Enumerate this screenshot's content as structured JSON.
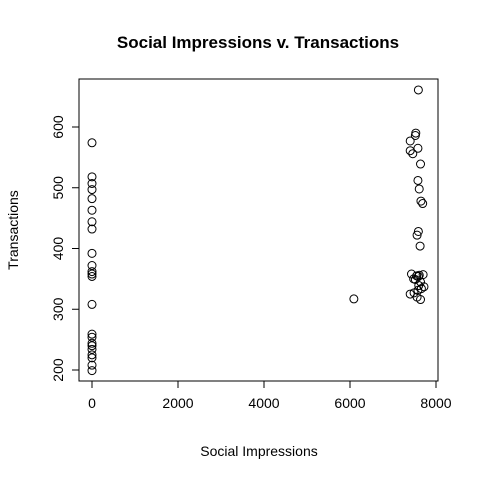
{
  "chart_data": {
    "type": "scatter",
    "title": "Social Impressions v. Transactions",
    "xlabel": "Social Impressions",
    "ylabel": "Transactions",
    "xlim": [
      -300,
      8000
    ],
    "ylim": [
      190,
      680
    ],
    "xticks": [
      0,
      2000,
      4000,
      6000,
      8000
    ],
    "yticks": [
      200,
      300,
      400,
      500,
      600
    ],
    "xtick_labels": [
      "0",
      "2000",
      "4000",
      "6000",
      "8000"
    ],
    "ytick_labels": [
      "200",
      "300",
      "400",
      "500",
      "600"
    ],
    "grid": false,
    "series": [
      {
        "points": [
          [
            0,
            574
          ],
          [
            0,
            518
          ],
          [
            0,
            507
          ],
          [
            0,
            497
          ],
          [
            0,
            482
          ],
          [
            0,
            463
          ],
          [
            0,
            444
          ],
          [
            0,
            432
          ],
          [
            0,
            392
          ],
          [
            0,
            372
          ],
          [
            0,
            362
          ],
          [
            0,
            358
          ],
          [
            0,
            354
          ],
          [
            0,
            308
          ],
          [
            0,
            259
          ],
          [
            0,
            254
          ],
          [
            0,
            244
          ],
          [
            0,
            240
          ],
          [
            0,
            234
          ],
          [
            0,
            225
          ],
          [
            0,
            220
          ],
          [
            0,
            208
          ],
          [
            0,
            199
          ],
          [
            6090,
            317
          ],
          [
            7590,
            661
          ],
          [
            7530,
            590
          ],
          [
            7520,
            586
          ],
          [
            7400,
            577
          ],
          [
            7580,
            565
          ],
          [
            7400,
            561
          ],
          [
            7460,
            556
          ],
          [
            7640,
            539
          ],
          [
            7580,
            512
          ],
          [
            7610,
            498
          ],
          [
            7650,
            478
          ],
          [
            7690,
            474
          ],
          [
            7590,
            428
          ],
          [
            7560,
            422
          ],
          [
            7630,
            404
          ],
          [
            7430,
            358
          ],
          [
            7550,
            355
          ],
          [
            7590,
            354
          ],
          [
            7610,
            356
          ],
          [
            7700,
            357
          ],
          [
            7480,
            350
          ],
          [
            7520,
            349
          ],
          [
            7640,
            345
          ],
          [
            7600,
            339
          ],
          [
            7720,
            337
          ],
          [
            7660,
            334
          ],
          [
            7580,
            331
          ],
          [
            7400,
            325
          ],
          [
            7490,
            327
          ],
          [
            7560,
            320
          ],
          [
            7640,
            316
          ]
        ]
      }
    ]
  }
}
